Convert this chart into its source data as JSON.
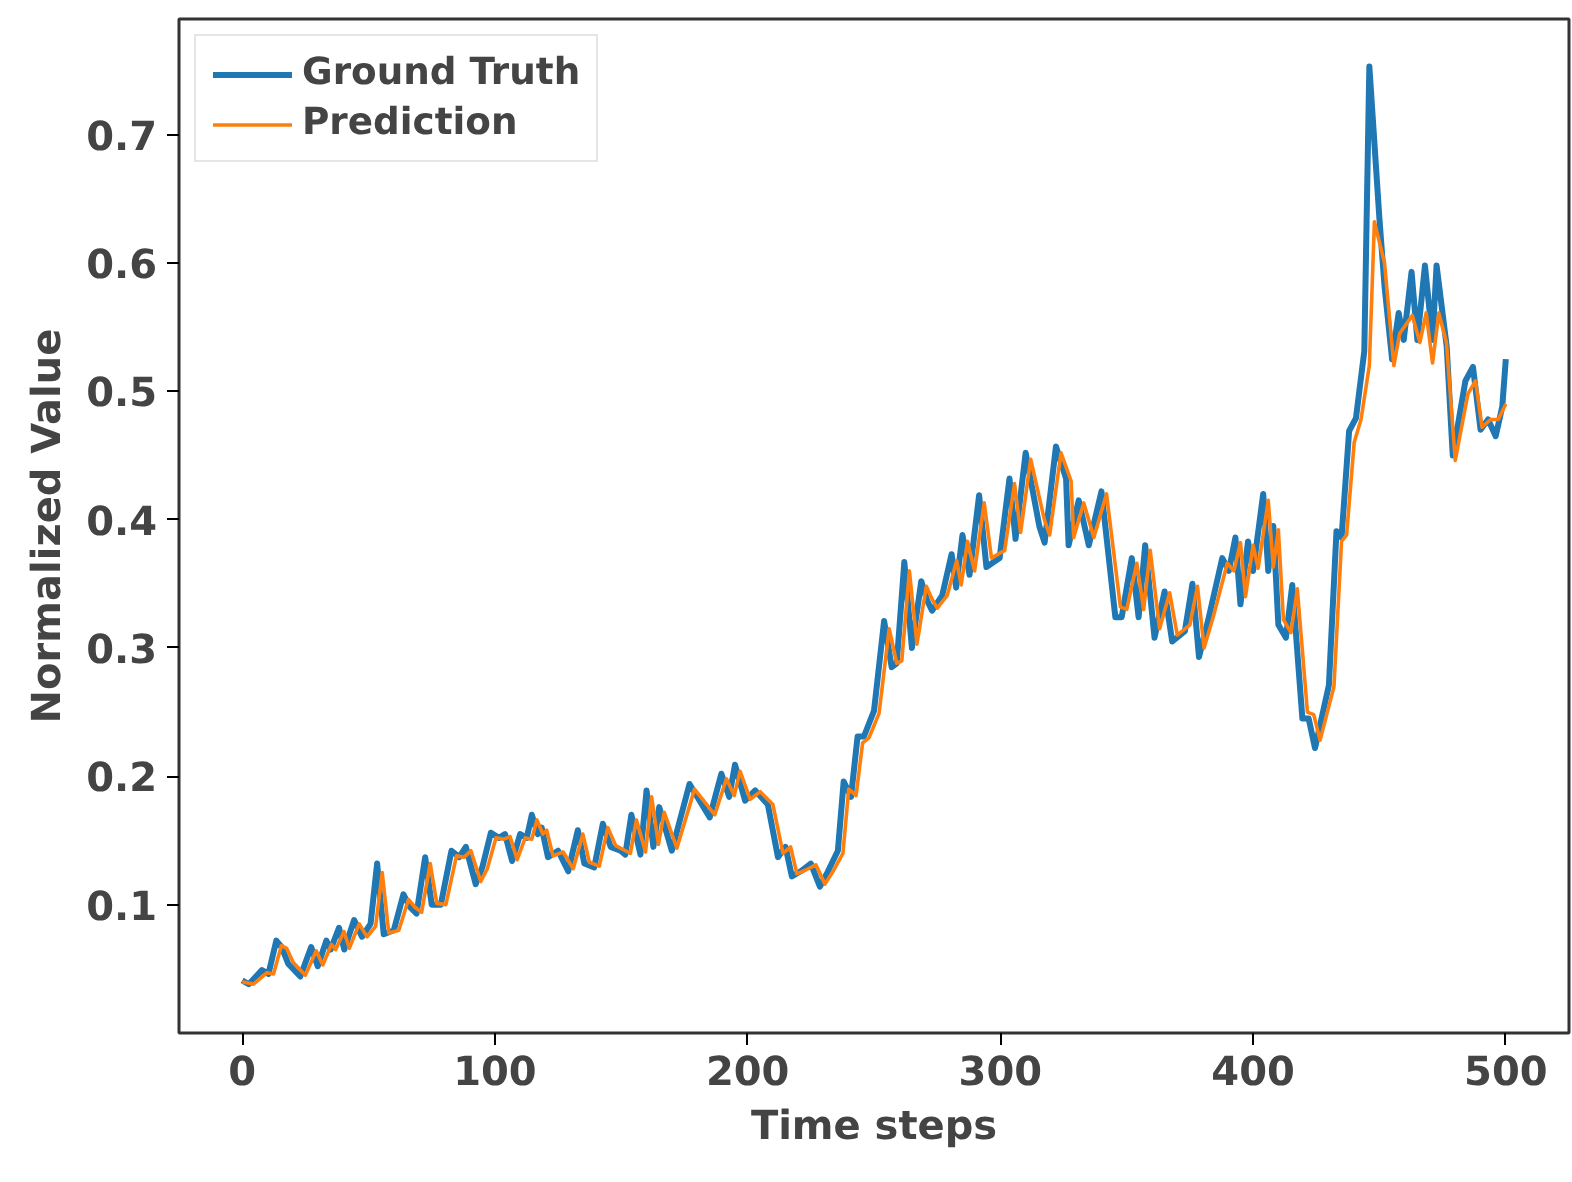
{
  "chart_data": {
    "type": "line",
    "xlabel": "Time steps",
    "ylabel": "Normalized Value",
    "xlim": [
      -25,
      525
    ],
    "ylim": [
      0.0,
      0.79
    ],
    "xticks": [
      0,
      100,
      200,
      300,
      400,
      500
    ],
    "yticks": [
      0.1,
      0.2,
      0.3,
      0.4,
      0.5,
      0.6,
      0.7
    ],
    "grid": false,
    "legend": "top left",
    "line_style": "solid",
    "series": [
      {
        "name": "Ground Truth",
        "color": "#1f77b4",
        "x": [
          0,
          2.6,
          7.8,
          10.4,
          13.5,
          15.6,
          18.2,
          23,
          27.3,
          29.9,
          33.3,
          35,
          38.3,
          40.4,
          44.3,
          47.4,
          50.8,
          53.4,
          56,
          60,
          63.8,
          66.4,
          69,
          72.4,
          75,
          78.6,
          82.8,
          85.9,
          88.5,
          92.4,
          95,
          98.4,
          101.6,
          104,
          106.8,
          110,
          112.6,
          114.6,
          117,
          118.5,
          121,
          125,
          129,
          132.8,
          135.4,
          139.3,
          142.7,
          145.8,
          149.7,
          151.6,
          154,
          157.6,
          160,
          162.7,
          165,
          170,
          177,
          185,
          189.6,
          192.7,
          195,
          199,
          203,
          208,
          212,
          215,
          217.5,
          221,
          225,
          228.6,
          231.8,
          235.7,
          238,
          240.9,
          243.5,
          246,
          250,
          254,
          257,
          259,
          262,
          265,
          268.7,
          271,
          273,
          277,
          280.7,
          282.5,
          285,
          287.8,
          291.6,
          294.5,
          299.7,
          303.6,
          306,
          310,
          315.4,
          317.5,
          322,
          326,
          327,
          331,
          335,
          340,
          345.5,
          348,
          352,
          354.7,
          357.3,
          361,
          365,
          368,
          373,
          376,
          378.6,
          382.5,
          387.8,
          390.4,
          393,
          395,
          398,
          400,
          404,
          406,
          408,
          410,
          413,
          415.5,
          419.5,
          422,
          424.5,
          430,
          433,
          435,
          438,
          440.7,
          444,
          446,
          450,
          452,
          455,
          457.6,
          459.6,
          462.7,
          465,
          468,
          471,
          472.6,
          476.6,
          479,
          484,
          487,
          490,
          493,
          496,
          498.6,
          500
        ],
        "values": [
          0.041,
          0.038,
          0.049,
          0.046,
          0.072,
          0.067,
          0.054,
          0.044,
          0.067,
          0.052,
          0.072,
          0.065,
          0.082,
          0.065,
          0.088,
          0.075,
          0.085,
          0.132,
          0.077,
          0.08,
          0.108,
          0.098,
          0.093,
          0.137,
          0.1,
          0.1,
          0.142,
          0.137,
          0.145,
          0.116,
          0.129,
          0.156,
          0.152,
          0.155,
          0.134,
          0.155,
          0.152,
          0.17,
          0.155,
          0.16,
          0.137,
          0.142,
          0.126,
          0.158,
          0.132,
          0.129,
          0.163,
          0.145,
          0.142,
          0.139,
          0.17,
          0.139,
          0.189,
          0.145,
          0.176,
          0.142,
          0.194,
          0.168,
          0.202,
          0.184,
          0.209,
          0.181,
          0.189,
          0.178,
          0.137,
          0.145,
          0.122,
          0.126,
          0.132,
          0.114,
          0.126,
          0.142,
          0.196,
          0.184,
          0.231,
          0.231,
          0.251,
          0.321,
          0.285,
          0.288,
          0.367,
          0.3,
          0.352,
          0.337,
          0.329,
          0.341,
          0.373,
          0.347,
          0.388,
          0.357,
          0.419,
          0.363,
          0.37,
          0.432,
          0.385,
          0.452,
          0.395,
          0.382,
          0.457,
          0.432,
          0.38,
          0.415,
          0.38,
          0.422,
          0.324,
          0.324,
          0.37,
          0.324,
          0.38,
          0.308,
          0.344,
          0.305,
          0.313,
          0.35,
          0.293,
          0.324,
          0.37,
          0.36,
          0.386,
          0.334,
          0.383,
          0.36,
          0.42,
          0.36,
          0.395,
          0.318,
          0.308,
          0.349,
          0.245,
          0.245,
          0.222,
          0.271,
          0.391,
          0.386,
          0.469,
          0.479,
          0.531,
          0.753,
          0.634,
          0.582,
          0.525,
          0.561,
          0.54,
          0.593,
          0.54,
          0.598,
          0.54,
          0.598,
          0.535,
          0.45,
          0.508,
          0.519,
          0.47,
          0.478,
          0.465,
          0.488,
          0.525
        ]
      },
      {
        "name": "Prediction",
        "color": "#ff7f0e",
        "x": [
          0,
          4.5,
          9.8,
          12.4,
          15.5,
          17.6,
          20.2,
          25,
          29.3,
          31.9,
          35.3,
          37,
          40.3,
          42.4,
          46.3,
          49.4,
          52.8,
          55.4,
          58,
          62,
          65.8,
          68.4,
          71,
          74.4,
          77,
          80.6,
          84.8,
          87.9,
          90.5,
          94.4,
          97,
          100.4,
          103.6,
          106,
          108.8,
          112,
          114.6,
          116.6,
          119,
          120.5,
          123,
          127,
          131,
          134.8,
          137.4,
          141.3,
          144.7,
          147.8,
          151.7,
          153.6,
          156,
          159.6,
          162,
          164.7,
          167,
          172,
          179,
          187,
          191.6,
          194.7,
          197,
          201,
          205,
          210,
          214,
          217,
          219.5,
          223,
          227,
          230.6,
          233.8,
          237.7,
          240,
          242.9,
          245.5,
          248,
          252,
          256,
          259,
          261,
          264,
          267,
          270.7,
          273,
          275,
          279,
          282.7,
          284.5,
          287,
          289.8,
          293.6,
          296.5,
          301.7,
          305.6,
          308,
          312,
          317.4,
          319.5,
          324,
          328,
          329,
          333,
          337,
          342,
          347.5,
          350,
          354,
          356.7,
          359.3,
          363,
          367,
          370,
          375,
          378,
          380.6,
          384.5,
          389.8,
          392.4,
          395,
          397,
          400,
          402,
          406,
          408,
          410,
          412,
          415,
          417.5,
          421.5,
          424,
          426.5,
          432,
          435,
          437,
          440,
          442.7,
          446,
          448,
          452,
          455.7,
          458,
          463,
          466,
          468.5,
          471,
          473.5,
          476.5,
          480,
          485,
          488,
          490.6,
          494,
          497,
          500
        ],
        "values": [
          0.04,
          0.038,
          0.047,
          0.046,
          0.068,
          0.066,
          0.055,
          0.045,
          0.064,
          0.053,
          0.069,
          0.065,
          0.079,
          0.066,
          0.085,
          0.075,
          0.083,
          0.125,
          0.078,
          0.08,
          0.104,
          0.098,
          0.094,
          0.132,
          0.101,
          0.1,
          0.138,
          0.137,
          0.142,
          0.118,
          0.128,
          0.152,
          0.151,
          0.153,
          0.135,
          0.152,
          0.151,
          0.166,
          0.155,
          0.158,
          0.138,
          0.141,
          0.128,
          0.155,
          0.133,
          0.13,
          0.16,
          0.146,
          0.142,
          0.14,
          0.166,
          0.141,
          0.184,
          0.147,
          0.172,
          0.144,
          0.19,
          0.17,
          0.198,
          0.185,
          0.204,
          0.182,
          0.188,
          0.178,
          0.14,
          0.145,
          0.124,
          0.127,
          0.131,
          0.116,
          0.126,
          0.14,
          0.19,
          0.185,
          0.226,
          0.23,
          0.249,
          0.315,
          0.288,
          0.29,
          0.36,
          0.303,
          0.348,
          0.338,
          0.331,
          0.341,
          0.368,
          0.349,
          0.383,
          0.36,
          0.413,
          0.37,
          0.376,
          0.428,
          0.39,
          0.447,
          0.4,
          0.388,
          0.452,
          0.43,
          0.386,
          0.413,
          0.386,
          0.42,
          0.332,
          0.33,
          0.366,
          0.33,
          0.376,
          0.315,
          0.343,
          0.31,
          0.318,
          0.348,
          0.3,
          0.326,
          0.366,
          0.36,
          0.382,
          0.34,
          0.38,
          0.362,
          0.415,
          0.363,
          0.392,
          0.322,
          0.312,
          0.346,
          0.25,
          0.248,
          0.228,
          0.27,
          0.383,
          0.388,
          0.46,
          0.478,
          0.52,
          0.632,
          0.6,
          0.52,
          0.545,
          0.559,
          0.538,
          0.561,
          0.522,
          0.561,
          0.538,
          0.446,
          0.498,
          0.508,
          0.472,
          0.478,
          0.478,
          0.49
        ]
      }
    ]
  }
}
